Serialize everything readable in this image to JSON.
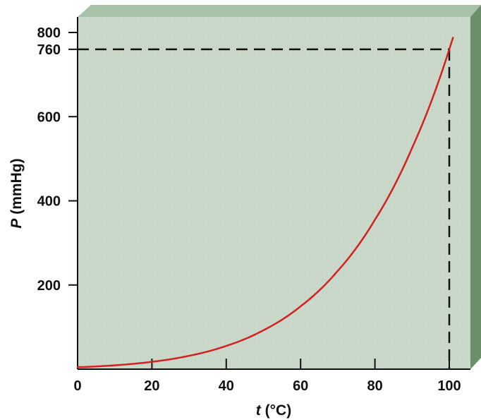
{
  "chart_data": {
    "type": "line",
    "title": "",
    "xlabel": {
      "variable": "t",
      "unit": " (°C)"
    },
    "ylabel": {
      "variable": "P",
      "unit": " (mmHg)"
    },
    "xlim": [
      0,
      100
    ],
    "ylim": [
      0,
      800
    ],
    "x_ticks": [
      {
        "value": 0,
        "label": "0"
      },
      {
        "value": 20,
        "label": "20"
      },
      {
        "value": 40,
        "label": "40"
      },
      {
        "value": 60,
        "label": "60"
      },
      {
        "value": 80,
        "label": "80"
      },
      {
        "value": 100,
        "label": "100"
      }
    ],
    "y_ticks": [
      {
        "value": 200,
        "label": "200"
      },
      {
        "value": 400,
        "label": "400"
      },
      {
        "value": 600,
        "label": "600"
      },
      {
        "value": 760,
        "label": "760"
      },
      {
        "value": 800,
        "label": "800"
      }
    ],
    "series": [
      {
        "color": "#d42020",
        "x": [
          0,
          10,
          20,
          30,
          40,
          50,
          60,
          70,
          80,
          90,
          100,
          101
        ],
        "y": [
          4.6,
          9.2,
          17.5,
          31.8,
          55.3,
          92.5,
          149.4,
          233.7,
          355.1,
          525.8,
          760,
          787.6
        ]
      }
    ],
    "reference_lines": [
      {
        "style": "dashed",
        "x": 100,
        "y": 760
      }
    ],
    "colors": {
      "plot_face": "#c9d8c9",
      "plot_top_bevel": "#a8c2a8",
      "plot_right_bevel": "#6b8f6b",
      "curve": "#d42020",
      "axis": "#111111"
    }
  }
}
